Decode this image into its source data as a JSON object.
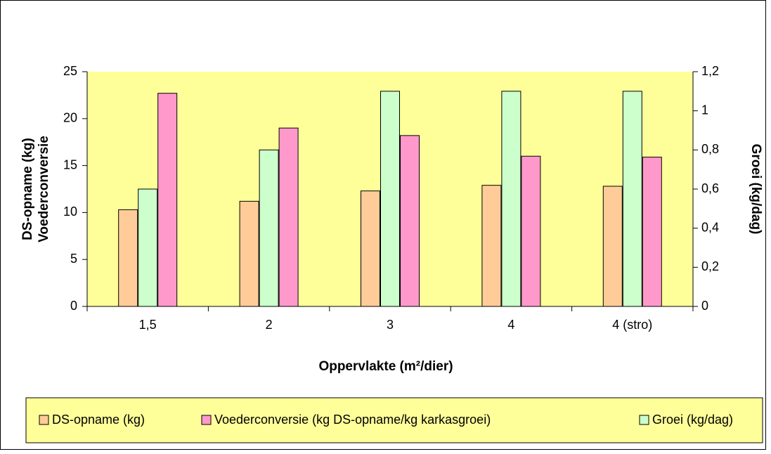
{
  "chart_data": {
    "type": "bar",
    "categories": [
      "1,5",
      "2",
      "3",
      "4",
      "4 (stro)"
    ],
    "series": [
      {
        "name": "DS-opname (kg)",
        "color": "#FFCC99",
        "values": [
          10.3,
          11.2,
          12.3,
          12.9,
          12.8
        ]
      },
      {
        "name": "Voederconversie (kg DS-opname/kg karkasgroei)",
        "color": "#FF99CC",
        "values": [
          22.7,
          19.0,
          18.2,
          16.0,
          15.9
        ]
      },
      {
        "name": "Groei (kg/dag)",
        "color": "#CCFFCC",
        "axis": "y2",
        "values": [
          0.6,
          0.8,
          1.1,
          1.1,
          1.1
        ]
      }
    ],
    "ylim": [
      0,
      25
    ],
    "yticks": [
      0,
      5,
      10,
      15,
      20,
      25
    ],
    "y2lim": [
      0,
      1.2
    ],
    "y2ticks": [
      0,
      {
        "value": 0.2,
        "label": "0,2"
      },
      {
        "value": 0.4,
        "label": "0,4"
      },
      {
        "value": 0.6,
        "label": "0,6"
      },
      {
        "value": 0.8,
        "label": "0,8"
      },
      1,
      {
        "value": 1.2,
        "label": "1,2"
      }
    ],
    "ylabel": [
      "DS-opname (kg)",
      "Voederconversie"
    ],
    "y2label": "Groei (kg/dag)",
    "xlabel": "Oppervlakte (m²/dier)",
    "plot_background": "#FFFF99"
  }
}
